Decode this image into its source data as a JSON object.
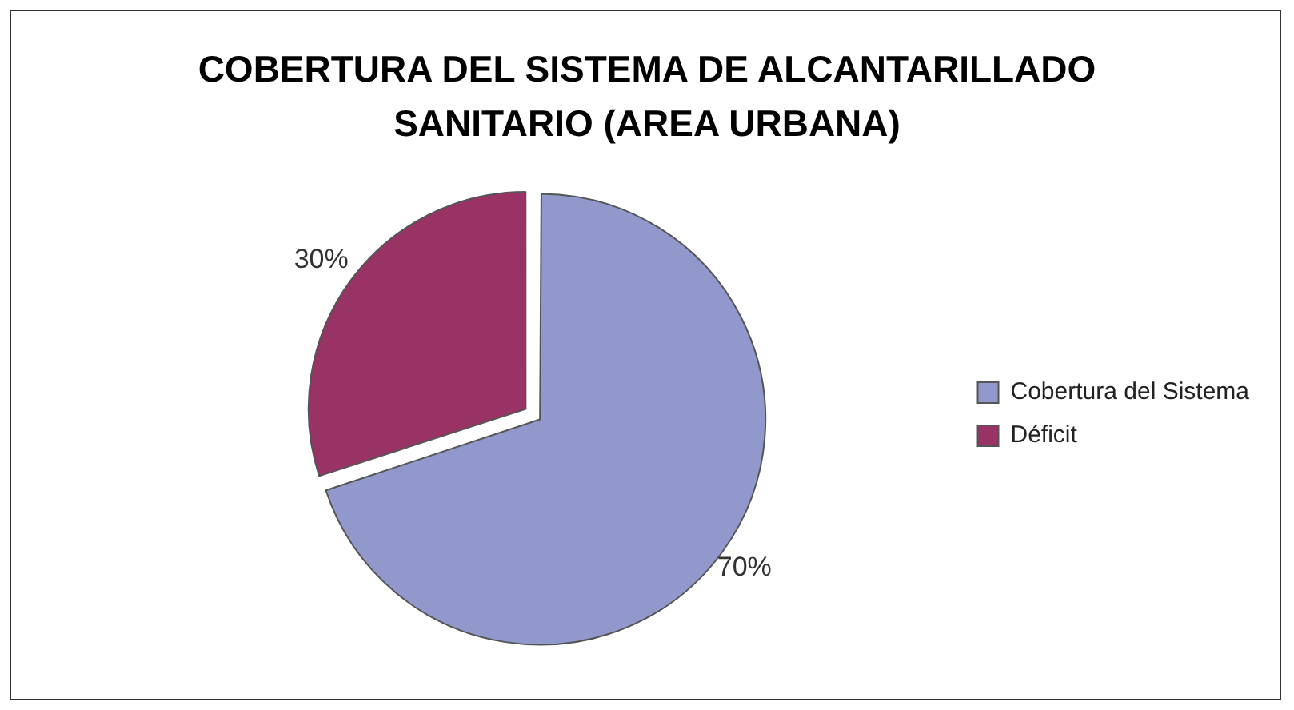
{
  "chart_data": {
    "type": "pie",
    "title": "COBERTURA DEL SISTEMA DE ALCANTARILLADO SANITARIO (AREA URBANA)",
    "categories": [
      "Cobertura del Sistema",
      "Déficit"
    ],
    "values": [
      70,
      30
    ],
    "colors": [
      "#9098cc",
      "#993366"
    ],
    "value_labels": [
      "70%",
      "30%"
    ],
    "legend": "right"
  }
}
